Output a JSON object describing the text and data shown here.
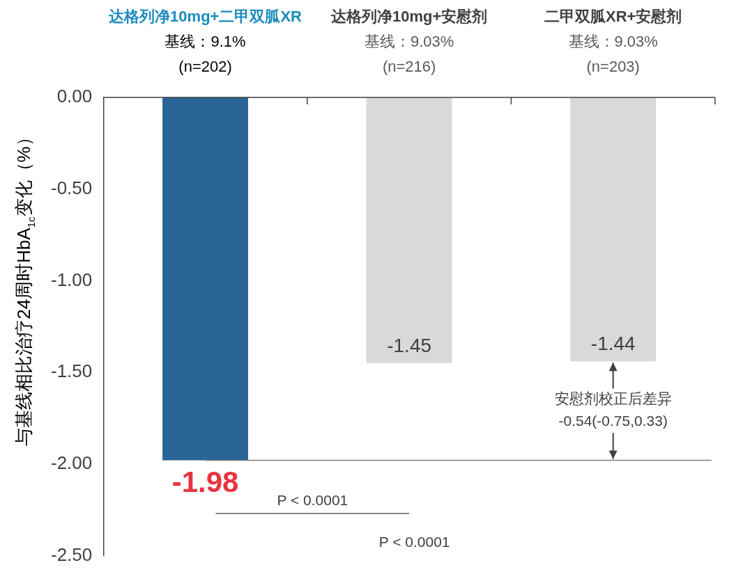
{
  "chart_data": {
    "type": "bar",
    "categories": [
      "达格列净10mg+二甲双胍XR",
      "达格列净10mg+安慰剂",
      "二甲双胍XR+安慰剂"
    ],
    "values": [
      -1.98,
      -1.45,
      -1.44
    ],
    "colors": [
      "#2a6496",
      "#d9d9d9",
      "#d9d9d9"
    ],
    "ylabel": "与基线相比治疗24周时HbA$_{1c}$变化（%）",
    "ylim": [
      -2.5,
      0
    ],
    "yticks": [
      {
        "value": 0,
        "label": "0.00"
      },
      {
        "value": -0.5,
        "label": "-0.50"
      },
      {
        "value": -1,
        "label": "-1.00"
      },
      {
        "value": -1.5,
        "label": "-1.50"
      },
      {
        "value": -2,
        "label": "-2.00"
      },
      {
        "value": -2.5,
        "label": "-2.50"
      }
    ],
    "data_labels": true,
    "grid": false,
    "legend": false,
    "ref_lines": [
      {
        "axis": "y",
        "value": -1.98,
        "color": "#808080"
      }
    ],
    "annotations": [
      "基线：9.1%",
      "(n=202)",
      "基线：9.03%",
      "(n=216)",
      "基线：9.03%",
      "(n=203)",
      "安慰剂校正后差异",
      "-0.54(-0.75,0.33)",
      "P < 0.0001",
      "P < 0.0001"
    ]
  }
}
